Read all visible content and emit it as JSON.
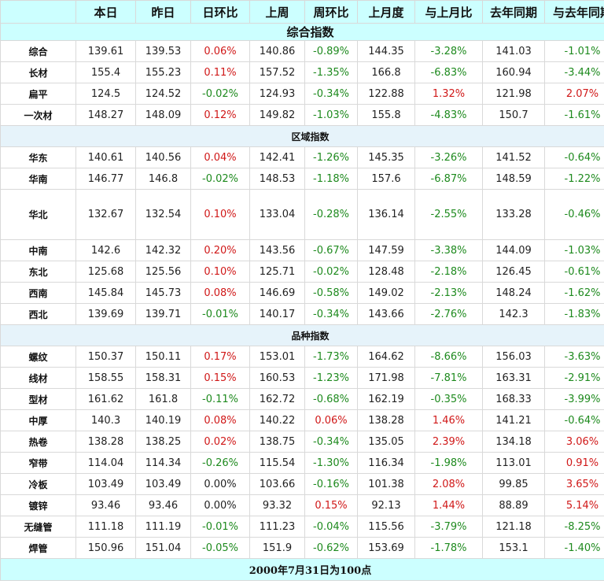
{
  "colors": {
    "header_bg": "#ccffff",
    "section_bg": "#e6f3fa",
    "negative": "#1e8a1e",
    "positive": "#d01818"
  },
  "headers": [
    "",
    "本日",
    "昨日",
    "日环比",
    "上周",
    "周环比",
    "上月度",
    "与上月比",
    "去年同期",
    "与去年同期"
  ],
  "sections": [
    {
      "title": "综合指数",
      "rows": [
        [
          "综合",
          "139.61",
          "139.53",
          "0.06%",
          "140.86",
          "-0.89%",
          "144.35",
          "-3.28%",
          "141.03",
          "-1.01%"
        ],
        [
          "长材",
          "155.4",
          "155.23",
          "0.11%",
          "157.52",
          "-1.35%",
          "166.8",
          "-6.83%",
          "160.94",
          "-3.44%"
        ],
        [
          "扁平",
          "124.5",
          "124.52",
          "-0.02%",
          "124.93",
          "-0.34%",
          "122.88",
          "1.32%",
          "121.98",
          "2.07%"
        ],
        [
          "一次材",
          "148.27",
          "148.09",
          "0.12%",
          "149.82",
          "-1.03%",
          "155.8",
          "-4.83%",
          "150.7",
          "-1.61%"
        ]
      ]
    },
    {
      "title": "区域指数",
      "rows": [
        [
          "华东",
          "140.61",
          "140.56",
          "0.04%",
          "142.41",
          "-1.26%",
          "145.35",
          "-3.26%",
          "141.52",
          "-0.64%"
        ],
        [
          "华南",
          "146.77",
          "146.8",
          "-0.02%",
          "148.53",
          "-1.18%",
          "157.6",
          "-6.87%",
          "148.59",
          "-1.22%"
        ],
        [
          "华北",
          "132.67",
          "132.54",
          "0.10%",
          "133.04",
          "-0.28%",
          "136.14",
          "-2.55%",
          "133.28",
          "-0.46%"
        ],
        [
          "中南",
          "142.6",
          "142.32",
          "0.20%",
          "143.56",
          "-0.67%",
          "147.59",
          "-3.38%",
          "144.09",
          "-1.03%"
        ],
        [
          "东北",
          "125.68",
          "125.56",
          "0.10%",
          "125.71",
          "-0.02%",
          "128.48",
          "-2.18%",
          "126.45",
          "-0.61%"
        ],
        [
          "西南",
          "145.84",
          "145.73",
          "0.08%",
          "146.69",
          "-0.58%",
          "149.02",
          "-2.13%",
          "148.24",
          "-1.62%"
        ],
        [
          "西北",
          "139.69",
          "139.71",
          "-0.01%",
          "140.17",
          "-0.34%",
          "143.66",
          "-2.76%",
          "142.3",
          "-1.83%"
        ]
      ]
    },
    {
      "title": "品种指数",
      "rows": [
        [
          "螺纹",
          "150.37",
          "150.11",
          "0.17%",
          "153.01",
          "-1.73%",
          "164.62",
          "-8.66%",
          "156.03",
          "-3.63%"
        ],
        [
          "线材",
          "158.55",
          "158.31",
          "0.15%",
          "160.53",
          "-1.23%",
          "171.98",
          "-7.81%",
          "163.31",
          "-2.91%"
        ],
        [
          "型材",
          "161.62",
          "161.8",
          "-0.11%",
          "162.72",
          "-0.68%",
          "162.19",
          "-0.35%",
          "168.33",
          "-3.99%"
        ],
        [
          "中厚",
          "140.3",
          "140.19",
          "0.08%",
          "140.22",
          "0.06%",
          "138.28",
          "1.46%",
          "141.21",
          "-0.64%"
        ],
        [
          "热卷",
          "138.28",
          "138.25",
          "0.02%",
          "138.75",
          "-0.34%",
          "135.05",
          "2.39%",
          "134.18",
          "3.06%"
        ],
        [
          "窄带",
          "114.04",
          "114.34",
          "-0.26%",
          "115.54",
          "-1.30%",
          "116.34",
          "-1.98%",
          "113.01",
          "0.91%"
        ],
        [
          "冷板",
          "103.49",
          "103.49",
          "0.00%",
          "103.66",
          "-0.16%",
          "101.38",
          "2.08%",
          "99.85",
          "3.65%"
        ],
        [
          "镀锌",
          "93.46",
          "93.46",
          "0.00%",
          "93.32",
          "0.15%",
          "92.13",
          "1.44%",
          "88.89",
          "5.14%"
        ],
        [
          "无缝管",
          "111.18",
          "111.19",
          "-0.01%",
          "111.23",
          "-0.04%",
          "115.56",
          "-3.79%",
          "121.18",
          "-8.25%"
        ],
        [
          "焊管",
          "150.96",
          "151.04",
          "-0.05%",
          "151.9",
          "-0.62%",
          "153.69",
          "-1.78%",
          "153.1",
          "-1.40%"
        ]
      ]
    }
  ],
  "footer": "2000年7月31日为100点"
}
